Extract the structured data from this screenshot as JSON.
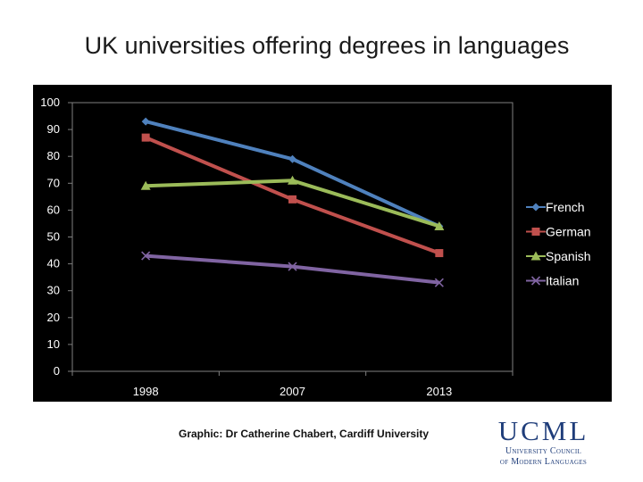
{
  "slide": {
    "title": "UK universities offering degrees in languages",
    "credit": "Graphic: Dr Catherine Chabert, Cardiff University"
  },
  "logo": {
    "wordmark": "UCML",
    "line1": "University Council",
    "line2": "of Modern Languages"
  },
  "chart_data": {
    "type": "line",
    "categories": [
      "1998",
      "2007",
      "2013"
    ],
    "series": [
      {
        "name": "French",
        "values": [
          93,
          79,
          54
        ],
        "color": "#4f81bd",
        "marker": "diamond"
      },
      {
        "name": "German",
        "values": [
          87,
          64,
          44
        ],
        "color": "#c0504d",
        "marker": "square"
      },
      {
        "name": "Spanish",
        "values": [
          69,
          71,
          54
        ],
        "color": "#9bbb59",
        "marker": "triangle"
      },
      {
        "name": "Italian",
        "values": [
          43,
          39,
          33
        ],
        "color": "#8064a2",
        "marker": "x"
      }
    ],
    "ylim": [
      0,
      100
    ],
    "yticks": [
      0,
      10,
      20,
      30,
      40,
      50,
      60,
      70,
      80,
      90,
      100
    ],
    "grid": false,
    "legend": "right",
    "background": "#000000"
  }
}
